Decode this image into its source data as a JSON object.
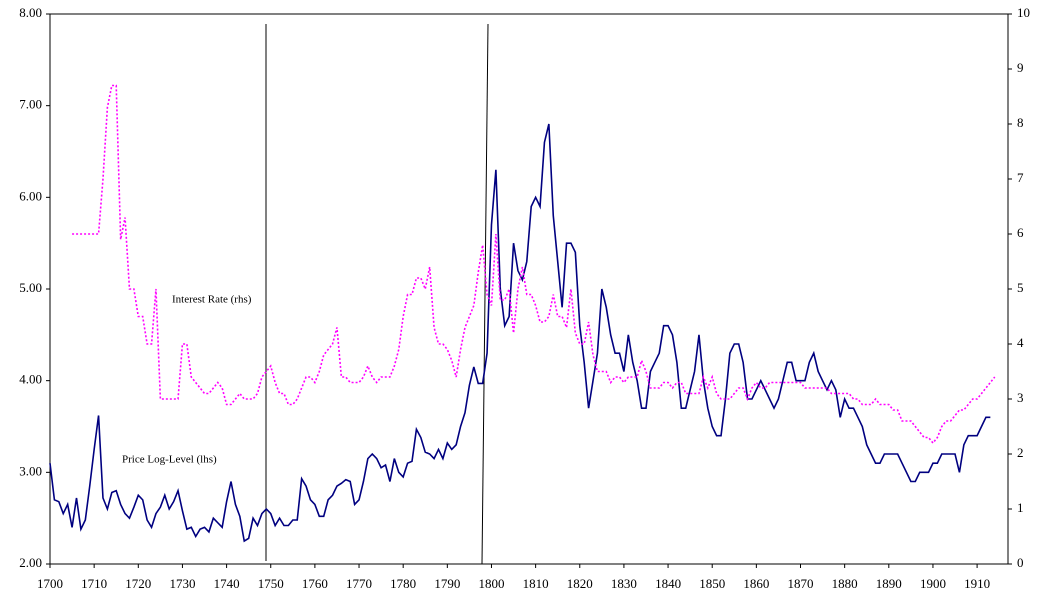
{
  "chart_data": {
    "type": "line",
    "annotations": [],
    "x": [
      1700,
      1701,
      1702,
      1703,
      1704,
      1705,
      1706,
      1707,
      1708,
      1709,
      1710,
      1711,
      1712,
      1713,
      1714,
      1715,
      1716,
      1717,
      1718,
      1719,
      1720,
      1721,
      1722,
      1723,
      1724,
      1725,
      1726,
      1727,
      1728,
      1729,
      1730,
      1731,
      1732,
      1733,
      1734,
      1735,
      1736,
      1737,
      1738,
      1739,
      1740,
      1741,
      1742,
      1743,
      1744,
      1745,
      1746,
      1747,
      1748,
      1749,
      1750,
      1751,
      1752,
      1753,
      1754,
      1755,
      1756,
      1757,
      1758,
      1759,
      1760,
      1761,
      1762,
      1763,
      1764,
      1765,
      1766,
      1767,
      1768,
      1769,
      1770,
      1771,
      1772,
      1773,
      1774,
      1775,
      1776,
      1777,
      1778,
      1779,
      1780,
      1781,
      1782,
      1783,
      1784,
      1785,
      1786,
      1787,
      1788,
      1789,
      1790,
      1791,
      1792,
      1793,
      1794,
      1795,
      1796,
      1797,
      1798,
      1799,
      1800,
      1801,
      1802,
      1803,
      1804,
      1805,
      1806,
      1807,
      1808,
      1809,
      1810,
      1811,
      1812,
      1813,
      1814,
      1815,
      1816,
      1817,
      1818,
      1819,
      1820,
      1821,
      1822,
      1823,
      1824,
      1825,
      1826,
      1827,
      1828,
      1829,
      1830,
      1831,
      1832,
      1833,
      1834,
      1835,
      1836,
      1837,
      1838,
      1839,
      1840,
      1841,
      1842,
      1843,
      1844,
      1845,
      1846,
      1847,
      1848,
      1849,
      1850,
      1851,
      1852,
      1853,
      1854,
      1855,
      1856,
      1857,
      1858,
      1859,
      1860,
      1861,
      1862,
      1863,
      1864,
      1865,
      1866,
      1867,
      1868,
      1869,
      1870,
      1871,
      1872,
      1873,
      1874,
      1875,
      1876,
      1877,
      1878,
      1879,
      1880,
      1881,
      1882,
      1883,
      1884,
      1885,
      1886,
      1887,
      1888,
      1889,
      1890,
      1891,
      1892,
      1893,
      1894,
      1895,
      1896,
      1897,
      1898,
      1899,
      1900,
      1901,
      1902,
      1903,
      1904,
      1905,
      1906,
      1907,
      1908,
      1909,
      1910,
      1911,
      1912,
      1913,
      1914
    ],
    "series": [
      {
        "name": "Price Log-Level (lhs)",
        "color": "#000080",
        "axis": "y",
        "values": [
          3.1,
          2.7,
          2.68,
          2.55,
          2.65,
          2.4,
          2.72,
          2.38,
          2.48,
          2.85,
          3.25,
          3.62,
          2.72,
          2.6,
          2.78,
          2.8,
          2.65,
          2.55,
          2.5,
          2.62,
          2.75,
          2.7,
          2.48,
          2.4,
          2.55,
          2.62,
          2.75,
          2.6,
          2.68,
          2.8,
          2.58,
          2.38,
          2.4,
          2.3,
          2.38,
          2.4,
          2.35,
          2.5,
          2.45,
          2.4,
          2.68,
          2.9,
          2.65,
          2.52,
          2.25,
          2.28,
          2.5,
          2.42,
          2.55,
          2.6,
          2.55,
          2.42,
          2.5,
          2.42,
          2.42,
          2.48,
          2.48,
          2.93,
          2.85,
          2.7,
          2.65,
          2.52,
          2.52,
          2.7,
          2.75,
          2.85,
          2.88,
          2.92,
          2.9,
          2.65,
          2.7,
          2.9,
          3.15,
          3.2,
          3.15,
          3.05,
          3.08,
          2.9,
          3.15,
          3.0,
          2.95,
          3.1,
          3.12,
          3.47,
          3.38,
          3.22,
          3.2,
          3.15,
          3.25,
          3.15,
          3.32,
          3.25,
          3.3,
          3.5,
          3.65,
          3.95,
          4.15,
          3.97,
          3.97,
          4.3,
          5.7,
          6.3,
          5.0,
          4.6,
          4.7,
          5.5,
          5.2,
          5.1,
          5.3,
          5.9,
          6.0,
          5.9,
          6.6,
          6.8,
          5.8,
          5.3,
          4.8,
          5.5,
          5.5,
          5.4,
          4.6,
          4.2,
          3.7,
          4.0,
          4.3,
          5.0,
          4.8,
          4.5,
          4.3,
          4.3,
          4.1,
          4.5,
          4.2,
          4.0,
          3.7,
          3.7,
          4.1,
          4.2,
          4.3,
          4.6,
          4.6,
          4.5,
          4.2,
          3.7,
          3.7,
          3.9,
          4.1,
          4.5,
          4.0,
          3.7,
          3.5,
          3.4,
          3.4,
          3.8,
          4.3,
          4.4,
          4.4,
          4.2,
          3.8,
          3.8,
          3.9,
          4.0,
          3.9,
          3.8,
          3.7,
          3.8,
          4.0,
          4.2,
          4.2,
          4.0,
          4.0,
          4.0,
          4.2,
          4.3,
          4.1,
          4.0,
          3.9,
          4.0,
          3.9,
          3.6,
          3.8,
          3.7,
          3.7,
          3.6,
          3.5,
          3.3,
          3.2,
          3.1,
          3.1,
          3.2,
          3.2,
          3.2,
          3.2,
          3.1,
          3.0,
          2.9,
          2.9,
          3.0,
          3.0,
          3.0,
          3.1,
          3.1,
          3.2,
          3.2,
          3.2,
          3.2,
          3.0,
          3.3,
          3.4,
          3.4,
          3.4,
          3.5,
          3.6,
          3.6,
          null
        ]
      },
      {
        "name": "Interest Rate (rhs)",
        "color": "#ff00ff",
        "axis": "y2",
        "dash": true,
        "values": [
          null,
          null,
          null,
          null,
          null,
          6,
          6,
          6,
          6,
          6,
          6,
          6,
          7,
          8.3,
          8.7,
          8.7,
          5.9,
          6.3,
          5,
          5,
          4.5,
          4.5,
          4,
          4,
          5,
          3,
          3,
          3,
          3,
          3,
          4,
          4,
          3.4,
          3.3,
          3.2,
          3.1,
          3.1,
          3.2,
          3.3,
          3.2,
          2.9,
          2.9,
          3.0,
          3.1,
          3.0,
          3.0,
          3.0,
          3.1,
          3.4,
          3.5,
          3.6,
          3.3,
          3.1,
          3.1,
          2.9,
          2.9,
          3.0,
          3.2,
          3.4,
          3.4,
          3.3,
          3.5,
          3.8,
          3.9,
          4.0,
          4.3,
          3.4,
          3.4,
          3.3,
          3.3,
          3.3,
          3.4,
          3.6,
          3.4,
          3.3,
          3.4,
          3.4,
          3.4,
          3.6,
          3.9,
          4.5,
          4.9,
          4.9,
          5.2,
          5.2,
          5.0,
          5.4,
          4.3,
          4.0,
          4.0,
          3.9,
          3.7,
          3.4,
          3.9,
          4.3,
          4.5,
          4.7,
          5.3,
          5.8,
          4.9,
          4.7,
          6.0,
          4.8,
          4.8,
          5.0,
          4.2,
          5.0,
          5.4,
          4.9,
          4.9,
          4.7,
          4.4,
          4.4,
          4.5,
          4.9,
          4.5,
          4.5,
          4.3,
          5.0,
          4.2,
          4.0,
          4.0,
          4.4,
          3.8,
          3.5,
          3.5,
          3.5,
          3.3,
          3.4,
          3.4,
          3.3,
          3.4,
          3.4,
          3.4,
          3.7,
          3.5,
          3.2,
          3.2,
          3.2,
          3.3,
          3.3,
          3.2,
          3.3,
          3.3,
          3.1,
          3.1,
          3.1,
          3.1,
          3.4,
          3.2,
          3.4,
          3.1,
          3.0,
          3.0,
          3.0,
          3.1,
          3.2,
          3.2,
          3.0,
          3.2,
          3.3,
          3.2,
          3.2,
          3.3,
          3.3,
          3.3,
          3.3,
          3.3,
          3.3,
          3.3,
          3.3,
          3.2,
          3.2,
          3.2,
          3.2,
          3.2,
          3.2,
          3.1,
          3.1,
          3.1,
          3.1,
          3.1,
          3.0,
          3.0,
          2.9,
          2.9,
          2.9,
          3.0,
          2.9,
          2.9,
          2.9,
          2.8,
          2.8,
          2.6,
          2.6,
          2.6,
          2.5,
          2.4,
          2.3,
          2.3,
          2.2,
          2.3,
          2.5,
          2.6,
          2.6,
          2.7,
          2.8,
          2.8,
          2.9,
          3.0,
          3.0,
          3.1,
          3.2,
          3.3,
          3.4
        ]
      }
    ],
    "xlim": [
      1700,
      1917
    ],
    "xticks": [
      1700,
      1710,
      1720,
      1730,
      1740,
      1750,
      1760,
      1770,
      1780,
      1790,
      1800,
      1810,
      1820,
      1830,
      1840,
      1850,
      1860,
      1870,
      1880,
      1890,
      1900,
      1910
    ],
    "ylim": [
      2,
      8
    ],
    "yticks": [
      {
        "value": 2,
        "label": "2.00"
      },
      {
        "value": 3,
        "label": "3.00"
      },
      {
        "value": 4,
        "label": "4.00"
      },
      {
        "value": 5,
        "label": "5.00"
      },
      {
        "value": 6,
        "label": "6.00"
      },
      {
        "value": 7,
        "label": "7.00"
      },
      {
        "value": 8,
        "label": "8.00"
      }
    ],
    "y2lim": [
      0,
      10
    ],
    "y2ticks": [
      0,
      1,
      2,
      3,
      4,
      5,
      6,
      7,
      8,
      9,
      10
    ],
    "grid": false
  }
}
